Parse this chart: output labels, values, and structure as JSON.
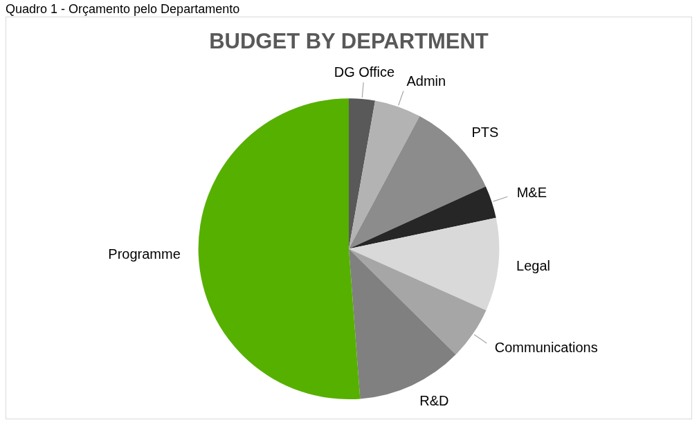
{
  "chart_data": {
    "type": "pie",
    "title": "BUDGET BY DEPARTMENT",
    "annotations": [
      "Quadro 1 - Orçamento pelo Departamento"
    ],
    "categories": [
      "DG Office",
      "Admin",
      "PTS",
      "M&E",
      "Legal",
      "Communications",
      "R&D",
      "Programme"
    ],
    "values": [
      2.8,
      5,
      10.4,
      3.5,
      10,
      5.7,
      11.4,
      51.2
    ],
    "colors": [
      "#595959",
      "#b3b3b3",
      "#8c8c8c",
      "#262626",
      "#d9d9d9",
      "#a6a6a6",
      "#808080",
      "#56b000"
    ],
    "legend": false
  }
}
